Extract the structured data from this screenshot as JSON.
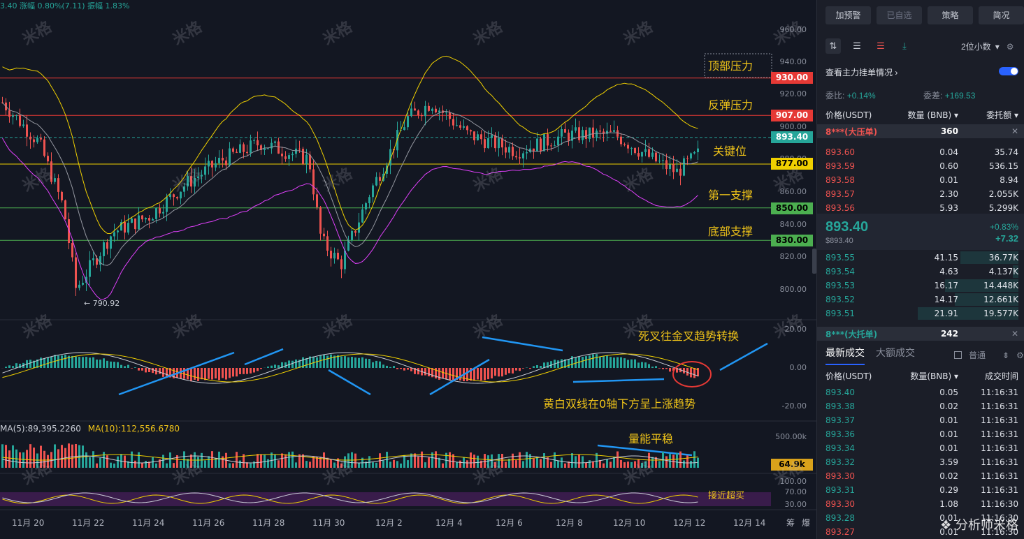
{
  "top_info": "3.40  涨幅 0.80%(7.11)  振幅 1.83%",
  "price_axis": [
    "960.00",
    "940.00",
    "920.00",
    "900.00",
    "880.00",
    "860.00",
    "840.00",
    "820.00",
    "800.00"
  ],
  "macd_axis": [
    "20.00",
    "0.00",
    "-20.00"
  ],
  "vol_axis": [
    "500.00k"
  ],
  "rsi_axis": [
    "100.00",
    "70.00",
    "30.00"
  ],
  "level_tags": [
    {
      "label": "930.00",
      "bg": "#e53935",
      "fg": "#ffffff"
    },
    {
      "label": "907.00",
      "bg": "#e53935",
      "fg": "#ffffff"
    },
    {
      "label": "893.40",
      "bg": "#26a69a",
      "fg": "#ffffff"
    },
    {
      "label": "877.00",
      "bg": "#f0d000",
      "fg": "#000000"
    },
    {
      "label": "850.00",
      "bg": "#4caf50",
      "fg": "#000000"
    },
    {
      "label": "830.00",
      "bg": "#4caf50",
      "fg": "#000000"
    },
    {
      "label": "64.9k",
      "bg": "#d9a21b",
      "fg": "#000000"
    }
  ],
  "annotations": {
    "top_pressure": "顶部压力",
    "rebound_pressure": "反弹压力",
    "key_level": "关键位",
    "first_support": "第一支撑",
    "bottom_support": "底部支撑",
    "macd_note1": "死叉往金叉趋势转换",
    "macd_note2": "黄白双线在0轴下方呈上涨趋势",
    "vol_note": "量能平稳",
    "rsi_note": "接近超买",
    "low_label": "← 790.92"
  },
  "ma_label": {
    "ma5": "MA(5):89,395.2260",
    "ma10": "MA(10):112,556.6780"
  },
  "x_labels": [
    "11月 20",
    "11月 22",
    "11月 24",
    "11月 26",
    "11月 28",
    "11月 30",
    "12月 2",
    "12月 4",
    "12月 6",
    "12月 8",
    "12月 10",
    "12月 12",
    "12月 14"
  ],
  "corner_labels": {
    "a": "筹",
    "b": "爆"
  },
  "watermark": "米格",
  "panel": {
    "buttons": [
      "加预警",
      "已自选",
      "策略",
      "简况"
    ],
    "decimal_select": "2位小数",
    "book_toggle_label": "查看主力挂单情况",
    "ratio_label": "委比:",
    "ratio_val": "+0.14%",
    "diff_label": "委差:",
    "diff_val": "+169.53",
    "headers": {
      "price": "价格(USDT)",
      "qty": "数量 (BNB)",
      "total": "委托额"
    },
    "big_ask": {
      "label": "8***(大压单)",
      "qty": "360"
    },
    "asks": [
      {
        "p": "893.60",
        "q": "0.04",
        "t": "35.74"
      },
      {
        "p": "893.59",
        "q": "0.60",
        "t": "536.15"
      },
      {
        "p": "893.58",
        "q": "0.01",
        "t": "8.94"
      },
      {
        "p": "893.57",
        "q": "2.30",
        "t": "2.055K"
      },
      {
        "p": "893.56",
        "q": "5.93",
        "t": "5.299K"
      }
    ],
    "last_price": "893.40",
    "last_price_sub": "$893.40",
    "change_pct": "+0.83%",
    "change_abs": "+7.32",
    "bids": [
      {
        "p": "893.55",
        "q": "41.15",
        "t": "36.77K"
      },
      {
        "p": "893.54",
        "q": "4.63",
        "t": "4.137K"
      },
      {
        "p": "893.53",
        "q": "16.17",
        "t": "14.448K"
      },
      {
        "p": "893.52",
        "q": "14.17",
        "t": "12.661K"
      },
      {
        "p": "893.51",
        "q": "21.91",
        "t": "19.577K"
      }
    ],
    "big_bid": {
      "label": "8***(大托单)",
      "qty": "242"
    },
    "tabs": [
      "最新成交",
      "大额成交"
    ],
    "normal_label": "普通",
    "trade_headers": {
      "price": "价格(USDT)",
      "qty": "数量(BNB)",
      "time": "成交时间"
    },
    "trades": [
      {
        "p": "893.40",
        "q": "0.05",
        "t": "11:16:31",
        "side": "buy"
      },
      {
        "p": "893.38",
        "q": "0.02",
        "t": "11:16:31",
        "side": "buy"
      },
      {
        "p": "893.37",
        "q": "0.01",
        "t": "11:16:31",
        "side": "buy"
      },
      {
        "p": "893.36",
        "q": "0.01",
        "t": "11:16:31",
        "side": "buy"
      },
      {
        "p": "893.34",
        "q": "0.01",
        "t": "11:16:31",
        "side": "buy"
      },
      {
        "p": "893.32",
        "q": "3.59",
        "t": "11:16:31",
        "side": "buy"
      },
      {
        "p": "893.30",
        "q": "0.02",
        "t": "11:16:31",
        "side": "sell"
      },
      {
        "p": "893.31",
        "q": "0.29",
        "t": "11:16:31",
        "side": "buy"
      },
      {
        "p": "893.30",
        "q": "1.08",
        "t": "11:16:30",
        "side": "sell"
      },
      {
        "p": "893.28",
        "q": "0.01",
        "t": "11:16:30",
        "side": "buy"
      },
      {
        "p": "893.27",
        "q": "0.01",
        "t": "11:16:30",
        "side": "sell"
      }
    ],
    "footer": "分析师米格"
  }
}
